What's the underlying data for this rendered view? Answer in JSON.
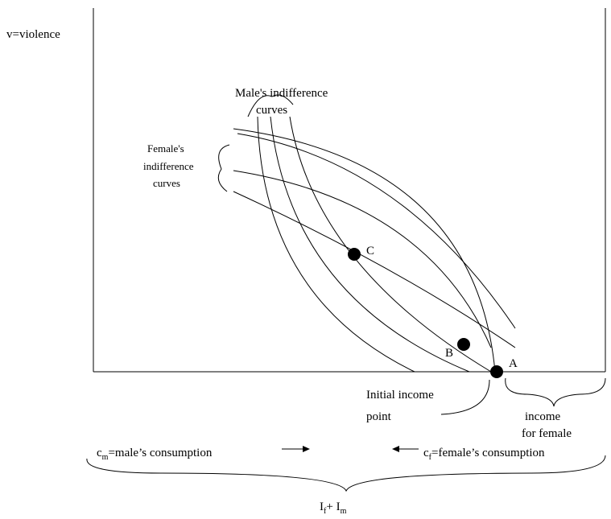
{
  "axis_labels": {
    "vertical": "v=violence",
    "male_consumption": {
      "symbol": "c",
      "subscript": "m",
      "text": "=male’s consumption"
    },
    "female_consumption": {
      "symbol": "c",
      "subscript": "f",
      "text": "=female’s consumption"
    }
  },
  "male_curves_label": [
    "Male's indifference",
    "curves"
  ],
  "female_curves_label": [
    "Female's",
    "indifference",
    "curves"
  ],
  "points": {
    "C": "C",
    "B": "B",
    "A": "A"
  },
  "initial_income_label": [
    "Initial income",
    "point"
  ],
  "female_income_label": [
    "income",
    "for female"
  ],
  "total_income": {
    "first": "I",
    "first_sub": "f",
    "plus": "+ ",
    "second": "I",
    "second_sub": "m"
  }
}
